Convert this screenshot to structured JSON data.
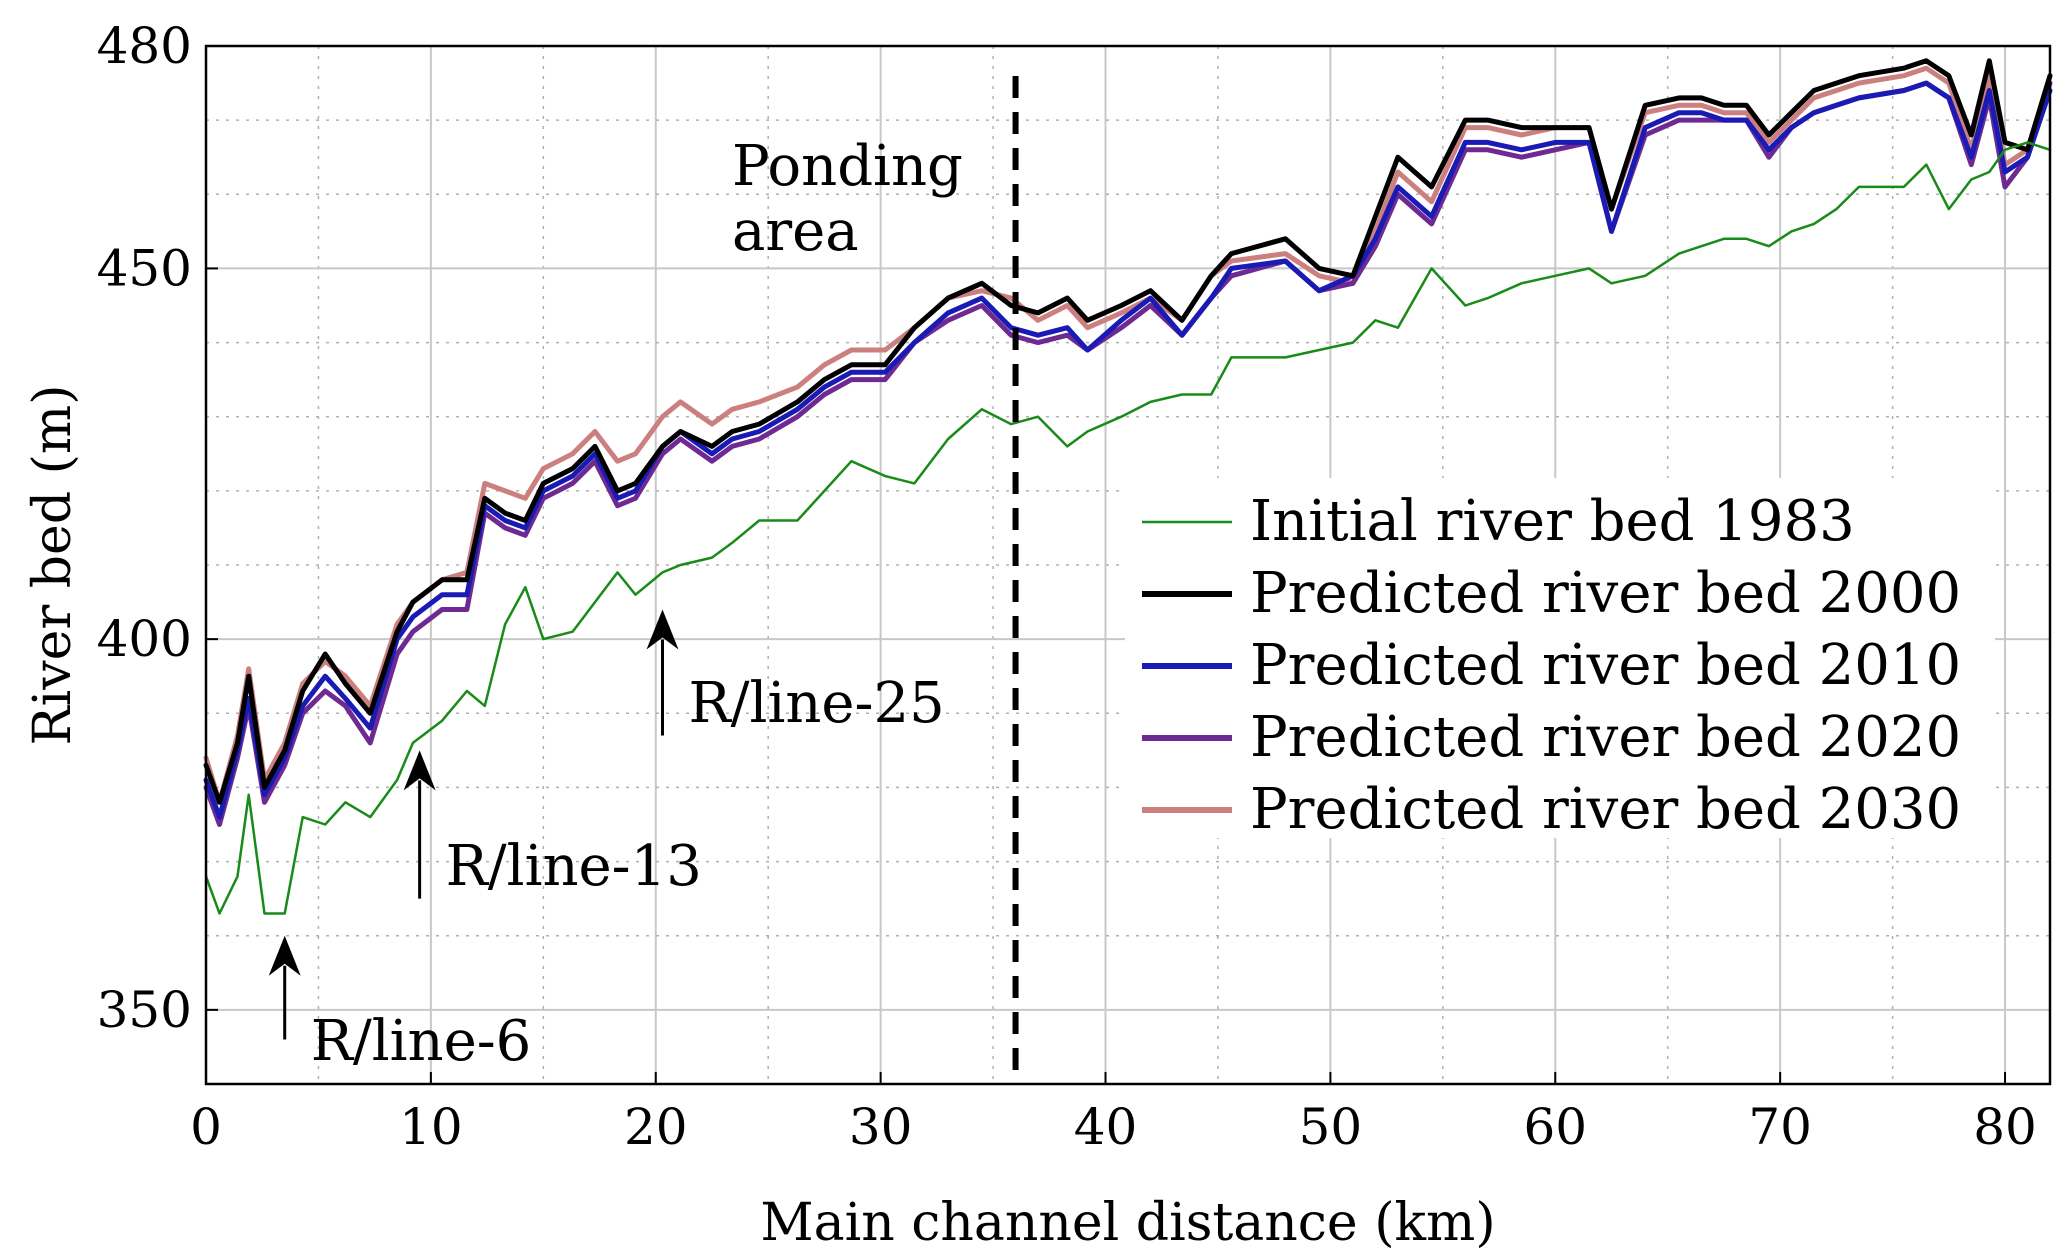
{
  "chart_data": {
    "type": "line",
    "xlabel": "Main channel distance (km)",
    "ylabel": "River bed (m)",
    "xlim": [
      0,
      82
    ],
    "ylim": [
      340,
      480
    ],
    "xticks": [
      0,
      10,
      20,
      30,
      40,
      50,
      60,
      70,
      80
    ],
    "yticks": [
      350,
      400,
      450,
      480
    ],
    "grid": true,
    "legend_position": "center-right",
    "x": [
      0,
      0.6,
      1.4,
      1.9,
      2.6,
      3.5,
      4.3,
      5.3,
      6.2,
      7.3,
      8.5,
      9.2,
      10.5,
      11.6,
      12.4,
      13.3,
      14.2,
      15.0,
      16.3,
      17.3,
      18.3,
      19.1,
      20.3,
      21.1,
      22.5,
      23.4,
      24.6,
      26.3,
      27.5,
      28.7,
      30.2,
      31.5,
      33.0,
      34.5,
      35.8,
      37.0,
      38.3,
      39.2,
      40.7,
      42.0,
      43.4,
      44.7,
      45.6,
      48.0,
      49.5,
      51.0,
      52.0,
      53.0,
      54.5,
      56.0,
      57.0,
      58.5,
      60.0,
      61.5,
      62.5,
      64.0,
      65.5,
      66.5,
      67.5,
      68.5,
      69.5,
      70.5,
      71.5,
      72.5,
      73.5,
      75.5,
      76.5,
      77.5,
      78.5,
      79.3,
      80.0,
      81.0,
      82.0
    ],
    "series": [
      {
        "name": "Initial river bed 1983",
        "color": "#1a8a1a",
        "values": [
          368,
          363,
          368,
          379,
          363,
          363,
          376,
          375,
          378,
          376,
          381,
          386,
          389,
          393,
          391,
          402,
          407,
          400,
          401,
          405,
          409,
          406,
          409,
          410,
          411,
          413,
          416,
          416,
          420,
          424,
          422,
          421,
          427,
          431,
          429,
          430,
          426,
          428,
          430,
          432,
          433,
          433,
          438,
          438,
          439,
          440,
          443,
          442,
          450,
          445,
          446,
          448,
          449,
          450,
          448,
          449,
          452,
          453,
          454,
          454,
          453,
          455,
          456,
          458,
          461,
          461,
          464,
          458,
          462,
          463,
          466,
          467,
          466
        ]
      },
      {
        "name": "Predicted river bed 2000",
        "color": "#000000",
        "values": [
          383,
          378,
          386,
          395,
          380,
          385,
          393,
          398,
          394,
          390,
          401,
          405,
          408,
          408,
          419,
          417,
          416,
          421,
          423,
          426,
          420,
          421,
          426,
          428,
          426,
          428,
          429,
          432,
          435,
          437,
          437,
          442,
          446,
          448,
          445,
          444,
          446,
          443,
          445,
          447,
          443,
          449,
          452,
          454,
          450,
          449,
          457,
          465,
          461,
          470,
          470,
          469,
          469,
          469,
          458,
          472,
          473,
          473,
          472,
          472,
          468,
          471,
          474,
          475,
          476,
          477,
          478,
          476,
          468,
          478,
          467,
          466,
          476
        ]
      },
      {
        "name": "Predicted river bed 2010",
        "color": "#1a1ab4",
        "values": [
          381,
          376,
          385,
          392,
          379,
          384,
          391,
          395,
          392,
          388,
          400,
          403,
          406,
          406,
          418,
          416,
          415,
          420,
          422,
          425,
          419,
          420,
          426,
          428,
          425,
          427,
          428,
          431,
          434,
          436,
          436,
          440,
          444,
          446,
          442,
          441,
          442,
          439,
          443,
          446,
          441,
          446,
          450,
          451,
          447,
          449,
          454,
          461,
          457,
          467,
          467,
          466,
          467,
          467,
          455,
          469,
          471,
          471,
          470,
          470,
          466,
          469,
          471,
          472,
          473,
          474,
          475,
          473,
          465,
          474,
          463,
          465,
          474
        ]
      },
      {
        "name": "Predicted river bed 2020",
        "color": "#6e2a92",
        "values": [
          380,
          375,
          384,
          391,
          378,
          383,
          390,
          393,
          391,
          386,
          398,
          401,
          404,
          404,
          417,
          415,
          414,
          419,
          421,
          424,
          418,
          419,
          425,
          427,
          424,
          426,
          427,
          430,
          433,
          435,
          435,
          440,
          443,
          445,
          441,
          440,
          441,
          439,
          442,
          445,
          441,
          446,
          449,
          451,
          447,
          448,
          453,
          460,
          456,
          466,
          466,
          465,
          466,
          467,
          455,
          468,
          470,
          470,
          470,
          470,
          465,
          469,
          471,
          472,
          473,
          474,
          475,
          473,
          464,
          473,
          461,
          465,
          475
        ]
      },
      {
        "name": "Predicted river bed 2030",
        "color": "#cc7f7f",
        "values": [
          384,
          378,
          387,
          396,
          381,
          386,
          394,
          397,
          395,
          391,
          402,
          405,
          408,
          409,
          421,
          420,
          419,
          423,
          425,
          428,
          424,
          425,
          430,
          432,
          429,
          431,
          432,
          434,
          437,
          439,
          439,
          442,
          446,
          447,
          446,
          443,
          445,
          442,
          444,
          446,
          443,
          449,
          451,
          452,
          449,
          448,
          455,
          463,
          459,
          469,
          469,
          468,
          469,
          469,
          458,
          471,
          472,
          472,
          471,
          471,
          467,
          470,
          473,
          474,
          475,
          476,
          477,
          475,
          466,
          476,
          464,
          466,
          476
        ]
      }
    ],
    "ponding_line_x": 36,
    "annotations": {
      "ponding_label": [
        "Ponding",
        "area"
      ],
      "arrows": [
        {
          "label": "R/line-6",
          "x": 3.5,
          "y_from": 346,
          "y_to": 360
        },
        {
          "label": "R/line-13",
          "x": 9.5,
          "y_from": 365,
          "y_to": 385
        },
        {
          "label": "R/line-25",
          "x": 20.3,
          "y_from": 387,
          "y_to": 404
        }
      ]
    }
  }
}
